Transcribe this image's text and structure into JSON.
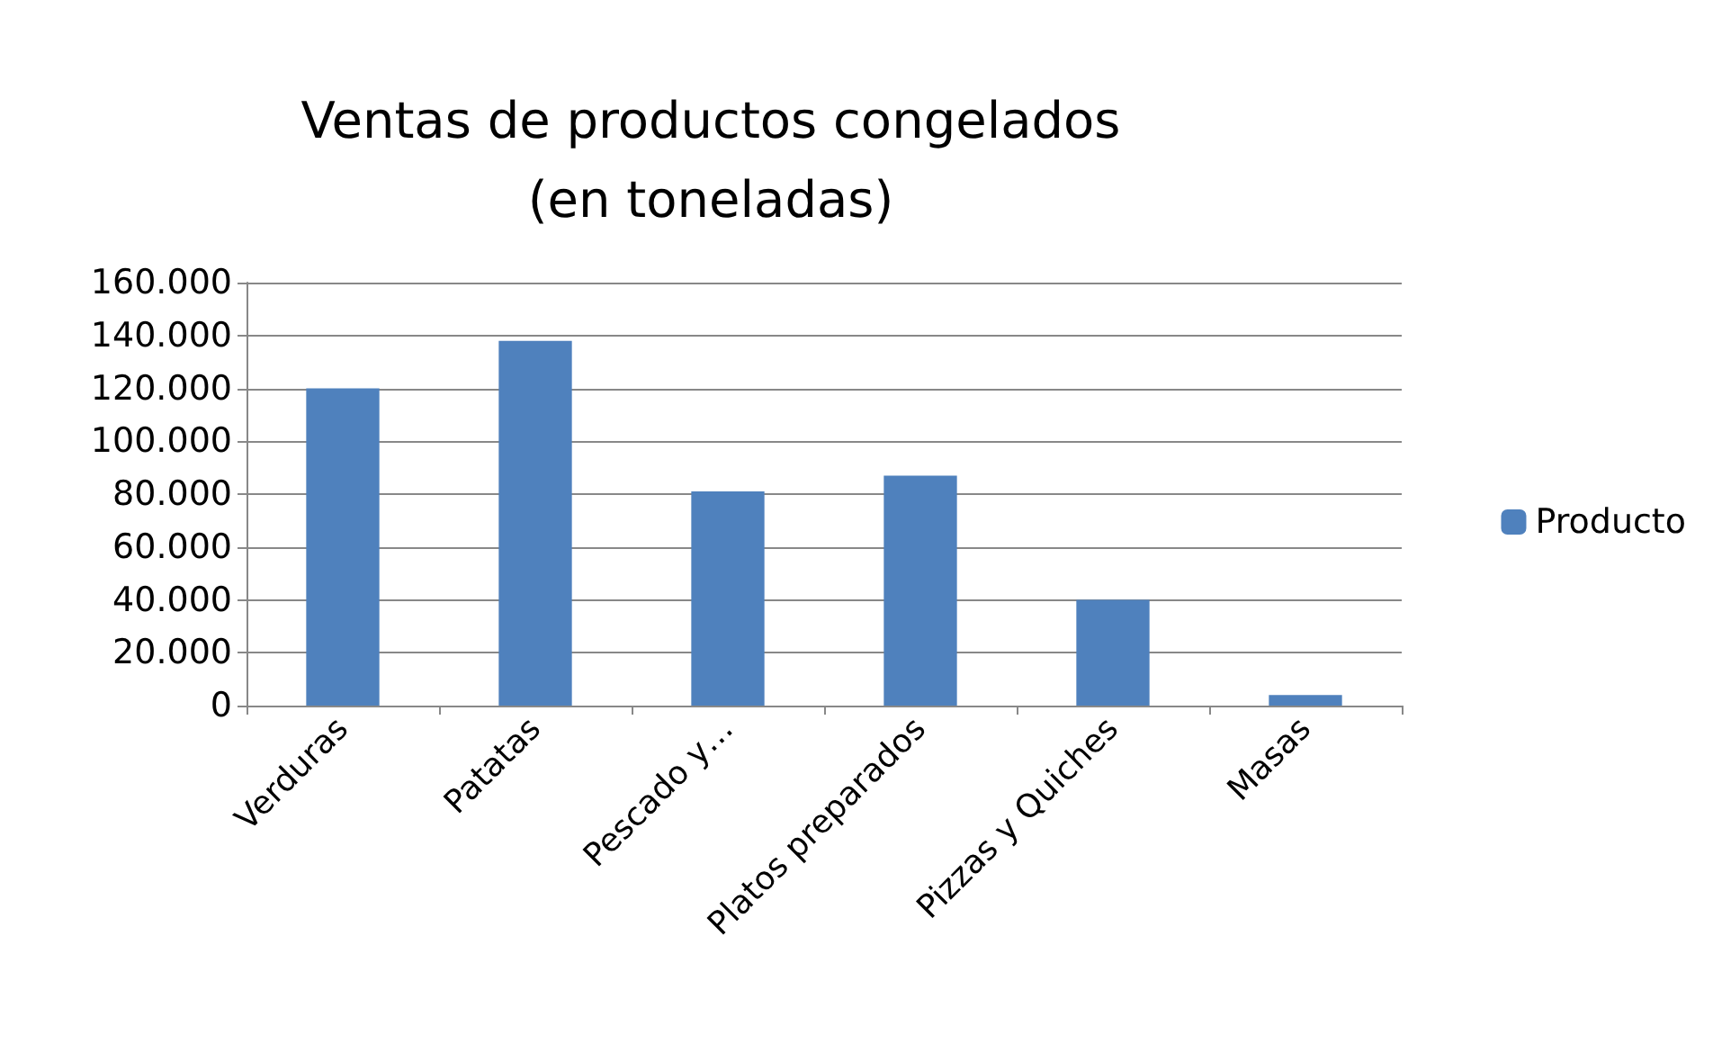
{
  "chart_data": {
    "type": "bar",
    "title": "Ventas de productos congelados\n(en toneladas)",
    "categories": [
      "Verduras",
      "Patatas",
      "Pescado y…",
      "Platos preparados",
      "Pizzas y Quiches",
      "Masas"
    ],
    "series": [
      {
        "name": "Producto",
        "color": "#4f81bd",
        "values": [
          120000,
          138000,
          81000,
          87000,
          40000,
          4000
        ]
      }
    ],
    "ylim": [
      0,
      160000
    ],
    "yticks": [
      {
        "value": 0,
        "label": "0"
      },
      {
        "value": 20000,
        "label": "20.000"
      },
      {
        "value": 40000,
        "label": "40.000"
      },
      {
        "value": 60000,
        "label": "60.000"
      },
      {
        "value": 80000,
        "label": "80.000"
      },
      {
        "value": 100000,
        "label": "100.000"
      },
      {
        "value": 120000,
        "label": "120.000"
      },
      {
        "value": 140000,
        "label": "140.000"
      },
      {
        "value": 160000,
        "label": "160.000"
      }
    ],
    "grid": "y",
    "legend": "right"
  }
}
